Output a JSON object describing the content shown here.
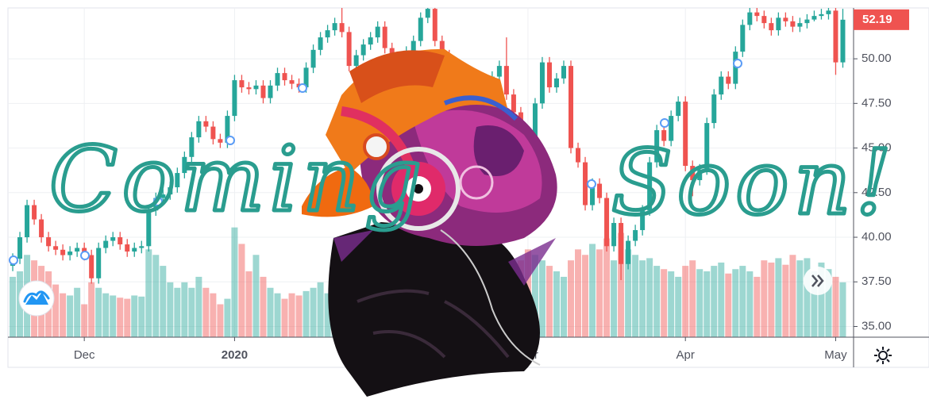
{
  "chart_data": {
    "type": "candlestick",
    "up_color": "#26a69a",
    "down_color": "#ef5350",
    "grid": true,
    "xlim": [
      -0.67,
      117.5
    ],
    "xticks": [
      {
        "value": 10,
        "label": "Dec"
      },
      {
        "value": 31,
        "label": "2020"
      },
      {
        "value": 72,
        "label": "Mar"
      },
      {
        "value": 94,
        "label": "Apr"
      },
      {
        "value": 115,
        "label": "May"
      }
    ],
    "ylim": [
      34.4,
      52.85
    ],
    "yticks": [
      {
        "value": 35,
        "label": "35.00"
      },
      {
        "value": 37.5,
        "label": "37.50"
      },
      {
        "value": 40,
        "label": "40.00"
      },
      {
        "value": 42.5,
        "label": "42.50"
      },
      {
        "value": 45,
        "label": "45.00"
      },
      {
        "value": 47.5,
        "label": "47.50"
      },
      {
        "value": 50,
        "label": "50.00"
      }
    ],
    "volume_lim": [
      0,
      300
    ],
    "x": [
      0,
      1,
      2,
      3,
      4,
      5,
      6,
      7,
      8,
      9,
      10,
      11,
      12,
      13,
      14,
      15,
      16,
      17,
      18,
      19,
      20,
      21,
      22,
      23,
      24,
      25,
      26,
      27,
      28,
      29,
      30,
      31,
      32,
      33,
      34,
      35,
      36,
      37,
      38,
      39,
      40,
      41,
      42,
      43,
      44,
      45,
      46,
      47,
      48,
      49,
      50,
      51,
      52,
      53,
      54,
      55,
      56,
      57,
      58,
      59,
      60,
      61,
      62,
      63,
      64,
      65,
      66,
      67,
      68,
      69,
      70,
      71,
      72,
      73,
      74,
      75,
      76,
      77,
      78,
      79,
      80,
      81,
      82,
      83,
      84,
      85,
      86,
      87,
      88,
      89,
      90,
      91,
      92,
      93,
      94,
      95,
      96,
      97,
      98,
      99,
      100,
      101,
      102,
      103,
      104,
      105,
      106,
      107,
      108,
      109,
      110,
      111,
      112,
      113,
      114,
      115,
      116
    ],
    "open": [
      38.4,
      38.8,
      40,
      41.8,
      41,
      40,
      39.5,
      39.3,
      39.0,
      39.2,
      39.4,
      39.0,
      37.7,
      39.4,
      39.8,
      40.0,
      39.6,
      39.2,
      39.4,
      39.5,
      41.5,
      42.2,
      42.4,
      42.8,
      43.6,
      44.5,
      45.6,
      46.5,
      46.2,
      45.5,
      45.3,
      46.8,
      48.8,
      48.4,
      48.3,
      48.5,
      47.8,
      48.5,
      49.2,
      48.8,
      48.6,
      48.4,
      49.5,
      50.5,
      51.2,
      51.6,
      52.0,
      51.5,
      49.6,
      50.2,
      50.8,
      51.2,
      51.8,
      50.6,
      50.0,
      49.6,
      50.4,
      51.0,
      52.3,
      52.8,
      51.0,
      50.2,
      49.5,
      48.8,
      48.0,
      47.6,
      47.2,
      48.4,
      49.0,
      49.6,
      48.0,
      47.0,
      45.8,
      45.2,
      47.5,
      49.8,
      48.4,
      48.9,
      49.6,
      45.0,
      44.2,
      41.8,
      43.0,
      42.2,
      39.5,
      40.8,
      38.5,
      39.8,
      40.4,
      41.5,
      44.2,
      46.0,
      45.4,
      46.8,
      47.6,
      44.0,
      43.2,
      43.8,
      46.4,
      48.0,
      49.0,
      48.6,
      50.4,
      51.9,
      52.6,
      52.4,
      52.0,
      51.6,
      52.3,
      52.1,
      51.8,
      52.0,
      52.2,
      52.4,
      52.5,
      52.7,
      49.8
    ],
    "high": [
      39.1,
      40.3,
      42.1,
      42.1,
      41.3,
      40.3,
      39.8,
      39.6,
      39.5,
      39.7,
      39.7,
      39.3,
      39.7,
      40.1,
      40.3,
      40.3,
      39.9,
      39.7,
      39.8,
      41.8,
      42.5,
      42.7,
      43.1,
      43.9,
      44.8,
      45.9,
      46.8,
      46.8,
      46.5,
      45.8,
      47.1,
      49.1,
      49.1,
      48.7,
      48.8,
      48.8,
      48.8,
      49.5,
      49.5,
      49.1,
      48.9,
      49.8,
      50.8,
      51.5,
      51.9,
      52.3,
      53.8,
      51.8,
      50.5,
      51.1,
      51.5,
      52.1,
      52.1,
      50.9,
      50.3,
      50.7,
      51.3,
      52.6,
      53.1,
      53.1,
      51.3,
      50.5,
      49.8,
      49.1,
      48.3,
      47.9,
      48.7,
      49.3,
      49.9,
      51.2,
      48.3,
      47.3,
      46.1,
      47.8,
      50.1,
      50.1,
      49.2,
      49.9,
      49.9,
      45.3,
      44.5,
      43.3,
      43.3,
      42.5,
      41.1,
      41.1,
      40.1,
      40.7,
      41.8,
      44.5,
      46.3,
      46.3,
      47.1,
      47.9,
      47.9,
      44.3,
      44.1,
      46.7,
      48.3,
      49.3,
      49.3,
      50.7,
      52.2,
      52.9,
      52.9,
      52.7,
      52.3,
      52.6,
      52.6,
      52.4,
      52.3,
      52.5,
      52.7,
      52.8,
      53.0,
      53.0,
      52.8
    ],
    "low": [
      38.1,
      38.5,
      39.7,
      40.7,
      39.7,
      39.2,
      39.0,
      38.7,
      38.7,
      38.9,
      38.7,
      37.4,
      37.4,
      39.1,
      39.5,
      39.3,
      38.9,
      38.9,
      39.1,
      39.2,
      41.2,
      41.9,
      42.1,
      42.5,
      43.3,
      44.2,
      45.3,
      45.9,
      45.2,
      45.0,
      45.0,
      46.5,
      48.1,
      48.0,
      48.0,
      47.5,
      47.5,
      48.2,
      48.5,
      48.3,
      48.1,
      48.1,
      49.2,
      50.2,
      50.9,
      51.3,
      51.2,
      49.3,
      49.3,
      49.9,
      50.5,
      50.9,
      50.3,
      49.7,
      49.3,
      49.3,
      50.1,
      50.7,
      52.0,
      50.7,
      49.9,
      49.2,
      48.5,
      47.7,
      47.3,
      46.9,
      46.9,
      48.1,
      48.7,
      47.7,
      46.7,
      45.5,
      44.9,
      44.9,
      47.2,
      48.1,
      48.1,
      48.6,
      44.7,
      43.9,
      41.5,
      41.5,
      41.9,
      39.2,
      39.2,
      37.6,
      38.2,
      39.5,
      40.1,
      41.2,
      43.9,
      45.1,
      45.1,
      46.5,
      43.7,
      42.3,
      42.9,
      43.5,
      46.1,
      47.7,
      48.3,
      48.3,
      50.1,
      51.6,
      52.1,
      51.7,
      51.3,
      51.3,
      51.8,
      51.5,
      51.5,
      51.7,
      52.1,
      52.2,
      52.2,
      49.1,
      49.5
    ],
    "close": [
      38.8,
      40,
      41.8,
      41,
      40,
      39.5,
      39.3,
      39.0,
      39.2,
      39.4,
      39.0,
      37.7,
      39.4,
      39.8,
      40.0,
      39.6,
      39.2,
      39.4,
      39.5,
      41.5,
      42.2,
      42.4,
      42.8,
      43.6,
      44.5,
      45.6,
      46.5,
      46.2,
      45.5,
      45.3,
      46.8,
      48.8,
      48.4,
      48.3,
      48.5,
      47.8,
      48.5,
      49.2,
      48.8,
      48.6,
      48.4,
      49.5,
      50.5,
      51.2,
      51.6,
      52.0,
      51.5,
      49.6,
      50.2,
      50.8,
      51.2,
      51.8,
      50.6,
      50.0,
      49.6,
      50.4,
      51.0,
      52.3,
      52.8,
      51.0,
      50.2,
      49.5,
      48.8,
      48.0,
      47.6,
      47.2,
      48.4,
      49.0,
      49.6,
      48.0,
      47.0,
      45.8,
      45.2,
      47.5,
      49.8,
      48.4,
      48.9,
      49.6,
      45.0,
      44.2,
      41.8,
      43.0,
      42.2,
      39.5,
      40.8,
      38.5,
      39.8,
      40.4,
      41.5,
      44.2,
      46.0,
      45.4,
      46.8,
      47.6,
      44.0,
      43.2,
      43.8,
      46.4,
      48.0,
      49.0,
      48.6,
      50.4,
      51.9,
      52.6,
      52.4,
      52.0,
      51.6,
      52.3,
      52.1,
      51.8,
      52.0,
      52.2,
      52.4,
      52.5,
      52.7,
      49.8,
      52.19
    ],
    "volume": [
      55,
      60,
      75,
      70,
      65,
      60,
      48,
      40,
      38,
      45,
      30,
      50,
      45,
      40,
      38,
      36,
      35,
      38,
      37,
      80,
      75,
      65,
      50,
      45,
      50,
      45,
      55,
      45,
      40,
      30,
      35,
      100,
      85,
      60,
      75,
      55,
      45,
      40,
      35,
      40,
      38,
      42,
      45,
      50,
      40,
      48,
      60,
      55,
      50,
      45,
      45,
      50,
      55,
      60,
      50,
      48,
      55,
      60,
      70,
      65,
      60,
      55,
      50,
      55,
      60,
      65,
      55,
      50,
      45,
      55,
      60,
      70,
      80,
      75,
      70,
      65,
      60,
      55,
      70,
      80,
      75,
      85,
      80,
      90,
      70,
      95,
      80,
      75,
      70,
      72,
      65,
      62,
      60,
      55,
      65,
      70,
      62,
      60,
      65,
      68,
      58,
      62,
      65,
      60,
      55,
      70,
      68,
      72,
      66,
      75,
      70,
      72,
      60,
      68,
      62,
      55,
      50
    ],
    "overlay_text": [
      "Coming",
      "Soon!"
    ]
  }
}
